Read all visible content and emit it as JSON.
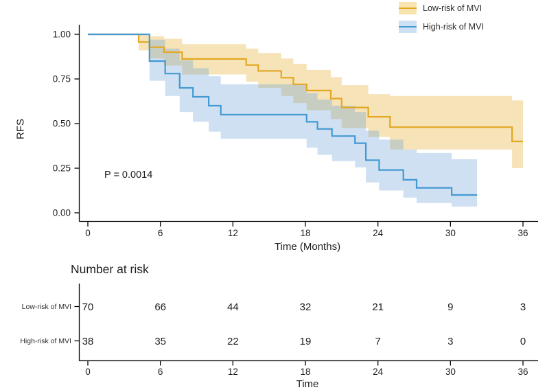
{
  "chart_data": {
    "type": "line",
    "subtype": "kaplan-meier-step",
    "title": "",
    "xlabel": "Time (Months)",
    "ylabel": "RFS",
    "xlim": [
      0,
      36
    ],
    "ylim": [
      0,
      1
    ],
    "x_ticks": [
      0,
      6,
      12,
      18,
      24,
      30,
      36
    ],
    "y_ticks": [
      0,
      0.25,
      0.5,
      0.75,
      1
    ],
    "y_tick_labels": [
      "0.00",
      "0.25",
      "0.50",
      "0.75",
      "1.00"
    ],
    "p_value": "P = 0.0014",
    "legend_position": "top-right",
    "grid": false,
    "series": [
      {
        "id": "low-risk",
        "name": "Low-risk of MVI",
        "color": "#E3A722",
        "band_fill": "rgba(227,167,34,0.32)",
        "legend_fill": "#F8E4AE",
        "steps": [
          [
            0,
            1.0
          ],
          [
            4.2,
            0.957
          ],
          [
            5.1,
            0.928
          ],
          [
            6.3,
            0.9
          ],
          [
            7.8,
            0.862
          ],
          [
            13.1,
            0.828
          ],
          [
            14.1,
            0.795
          ],
          [
            16,
            0.757
          ],
          [
            17,
            0.72
          ],
          [
            18.1,
            0.685
          ],
          [
            20.1,
            0.64
          ],
          [
            21,
            0.59
          ],
          [
            23.2,
            0.538
          ],
          [
            25,
            0.48
          ],
          [
            35.1,
            0.4
          ]
        ],
        "end_time": 36,
        "band": [
          [
            4.2,
            5.1,
            0.91,
            1.0
          ],
          [
            5.1,
            6.3,
            0.865,
            0.99
          ],
          [
            6.3,
            7.8,
            0.825,
            0.975
          ],
          [
            7.8,
            13.1,
            0.775,
            0.945
          ],
          [
            13.1,
            14.1,
            0.735,
            0.92
          ],
          [
            14.1,
            16,
            0.7,
            0.895
          ],
          [
            16,
            17,
            0.655,
            0.865
          ],
          [
            17,
            18.1,
            0.615,
            0.835
          ],
          [
            18.1,
            20.1,
            0.575,
            0.8
          ],
          [
            20.1,
            21,
            0.525,
            0.76
          ],
          [
            21,
            23.2,
            0.475,
            0.715
          ],
          [
            23.2,
            25,
            0.425,
            0.665
          ],
          [
            25,
            35.1,
            0.355,
            0.655
          ],
          [
            35.1,
            36,
            0.25,
            0.63
          ]
        ]
      },
      {
        "id": "high-risk",
        "name": "High-risk of MVI",
        "color": "#4499D3",
        "band_fill": "rgba(106,160,215,0.33)",
        "legend_fill": "#CEE0F3",
        "steps": [
          [
            0,
            1.0
          ],
          [
            5.1,
            0.85
          ],
          [
            6.4,
            0.78
          ],
          [
            7.6,
            0.7
          ],
          [
            8.7,
            0.65
          ],
          [
            10,
            0.6
          ],
          [
            11,
            0.55
          ],
          [
            18.1,
            0.51
          ],
          [
            19,
            0.47
          ],
          [
            20.2,
            0.43
          ],
          [
            22.1,
            0.39
          ],
          [
            23,
            0.295
          ],
          [
            24.1,
            0.24
          ],
          [
            26.1,
            0.185
          ],
          [
            27.2,
            0.14
          ],
          [
            30.1,
            0.1
          ]
        ],
        "end_time": 32.2,
        "band": [
          [
            5.1,
            6.4,
            0.74,
            0.97
          ],
          [
            6.4,
            7.6,
            0.655,
            0.92
          ],
          [
            7.6,
            8.7,
            0.565,
            0.855
          ],
          [
            8.7,
            10,
            0.51,
            0.81
          ],
          [
            10,
            11,
            0.455,
            0.765
          ],
          [
            11,
            18.1,
            0.415,
            0.72
          ],
          [
            18.1,
            19,
            0.365,
            0.67
          ],
          [
            19,
            20.2,
            0.325,
            0.635
          ],
          [
            20.2,
            22.1,
            0.29,
            0.6
          ],
          [
            22.1,
            23,
            0.255,
            0.565
          ],
          [
            23,
            24.1,
            0.17,
            0.46
          ],
          [
            24.1,
            26.1,
            0.125,
            0.41
          ],
          [
            26.1,
            27.2,
            0.085,
            0.355
          ],
          [
            27.2,
            30.1,
            0.055,
            0.335
          ],
          [
            30.1,
            32.2,
            0.035,
            0.3
          ]
        ]
      }
    ]
  },
  "risk_table": {
    "title": "Number at risk",
    "x_label": "Time",
    "x_ticks": [
      0,
      6,
      12,
      18,
      24,
      30,
      36
    ],
    "rows": [
      {
        "label": "Low-risk of MVI",
        "counts": [
          70,
          66,
          44,
          32,
          21,
          9,
          3
        ]
      },
      {
        "label": "High-risk of MVI",
        "counts": [
          38,
          35,
          22,
          19,
          7,
          3,
          0
        ]
      }
    ]
  }
}
